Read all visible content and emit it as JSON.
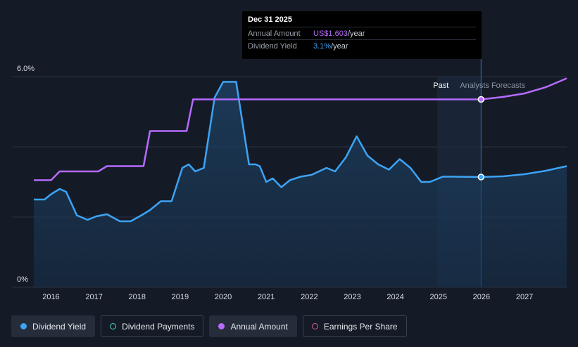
{
  "tooltip": {
    "date": "Dec 31 2025",
    "rows": [
      {
        "label": "Annual Amount",
        "value": "US$1.603",
        "unit": "/year"
      },
      {
        "label": "Dividend Yield",
        "value": "3.1%",
        "unit": "/year"
      }
    ]
  },
  "legend": [
    {
      "label": "Dividend Yield",
      "active": true
    },
    {
      "label": "Dividend Payments",
      "active": false
    },
    {
      "label": "Annual Amount",
      "active": true
    },
    {
      "label": "Earnings Per Share",
      "active": false
    }
  ],
  "colors": {
    "background": "#151b26",
    "yield": "#3da3f5",
    "amount": "#b66bff",
    "forecast_band": "#1b2a3d"
  },
  "chart_data": {
    "type": "line",
    "y_ticks": [
      "6.0%",
      "0%"
    ],
    "ylim": [
      0,
      6
    ],
    "x_ticks": [
      "2016",
      "2017",
      "2018",
      "2019",
      "2020",
      "2021",
      "2022",
      "2023",
      "2024",
      "2025",
      "2026",
      "2027"
    ],
    "xlim": [
      2015.6,
      2027.98
    ],
    "divider_labels": {
      "past": "Past",
      "forecast": "Analysts Forecasts"
    },
    "divider_x": 2025.99,
    "series": [
      {
        "name": "Dividend Yield",
        "x": [
          2015.6,
          2015.85,
          2016.0,
          2016.2,
          2016.35,
          2016.6,
          2016.85,
          2017.05,
          2017.3,
          2017.6,
          2017.85,
          2018.1,
          2018.3,
          2018.55,
          2018.8,
          2019.05,
          2019.2,
          2019.35,
          2019.55,
          2019.8,
          2020.0,
          2020.15,
          2020.3,
          2020.6,
          2020.75,
          2020.85,
          2021.0,
          2021.15,
          2021.35,
          2021.55,
          2021.8,
          2022.05,
          2022.4,
          2022.6,
          2022.85,
          2023.1,
          2023.35,
          2023.6,
          2023.85,
          2024.1,
          2024.35,
          2024.6,
          2024.8,
          2025.1,
          2025.3,
          2025.99,
          2026.5,
          2027.0,
          2027.5,
          2027.98
        ],
        "y": [
          2.5,
          2.5,
          2.65,
          2.8,
          2.72,
          2.05,
          1.92,
          2.02,
          2.08,
          1.88,
          1.88,
          2.05,
          2.2,
          2.45,
          2.45,
          3.4,
          3.5,
          3.3,
          3.4,
          5.4,
          5.85,
          5.85,
          5.85,
          3.5,
          3.5,
          3.45,
          3.0,
          3.1,
          2.85,
          3.05,
          3.15,
          3.2,
          3.4,
          3.3,
          3.7,
          4.3,
          3.75,
          3.5,
          3.35,
          3.65,
          3.4,
          3.0,
          3.0,
          3.15,
          3.15,
          3.14,
          3.16,
          3.22,
          3.32,
          3.45
        ]
      },
      {
        "name": "Annual Amount",
        "x": [
          2015.6,
          2016.0,
          2016.2,
          2016.4,
          2017.1,
          2017.3,
          2018.15,
          2018.3,
          2019.15,
          2019.3,
          2025.99,
          2026.5,
          2027.0,
          2027.5,
          2027.98
        ],
        "y": [
          3.05,
          3.05,
          3.3,
          3.3,
          3.3,
          3.45,
          3.45,
          4.45,
          4.45,
          5.35,
          5.35,
          5.42,
          5.52,
          5.7,
          5.95
        ]
      }
    ],
    "highlight": {
      "x": 2025.99,
      "yield": 3.14,
      "amount": 5.35
    }
  }
}
